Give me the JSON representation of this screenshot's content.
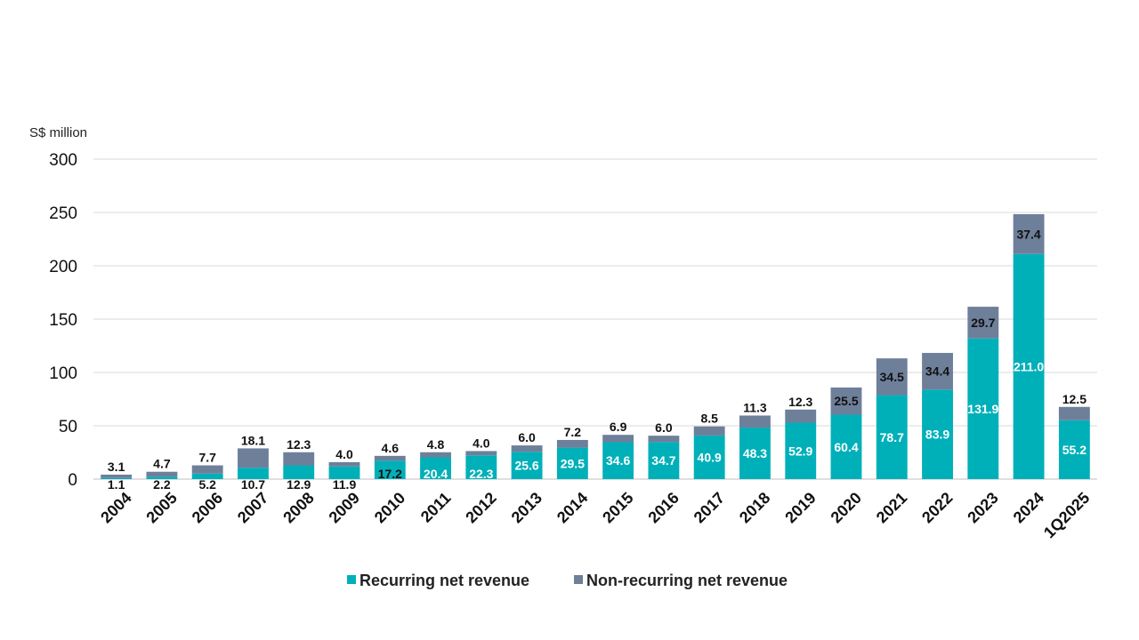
{
  "chart_data": {
    "type": "bar",
    "stacked": true,
    "unit_label": "S$ million",
    "categories": [
      "2004",
      "2005",
      "2006",
      "2007",
      "2008",
      "2009",
      "2010",
      "2011",
      "2012",
      "2013",
      "2014",
      "2015",
      "2016",
      "2017",
      "2018",
      "2019",
      "2020",
      "2021",
      "2022",
      "2023",
      "2024",
      "1Q2025"
    ],
    "series": [
      {
        "name": "Recurring net revenue",
        "color": "#00b0b9",
        "values": [
          1.1,
          2.2,
          5.2,
          10.7,
          12.9,
          11.9,
          17.2,
          20.4,
          22.3,
          25.6,
          29.5,
          34.6,
          34.7,
          40.9,
          48.3,
          52.9,
          60.4,
          78.7,
          83.9,
          131.9,
          211.0,
          55.2
        ]
      },
      {
        "name": "Non-recurring net revenue",
        "color": "#6e7f9a",
        "values": [
          3.1,
          4.7,
          7.7,
          18.1,
          12.3,
          4.0,
          4.6,
          4.8,
          4.0,
          6.0,
          7.2,
          6.9,
          6.0,
          8.5,
          11.3,
          12.3,
          25.5,
          34.5,
          34.4,
          29.7,
          37.4,
          12.5
        ]
      }
    ],
    "yticks": [
      0,
      50,
      100,
      150,
      200,
      250,
      300
    ],
    "ylim": [
      0,
      300
    ],
    "grid": true,
    "legend_position": "bottom"
  }
}
